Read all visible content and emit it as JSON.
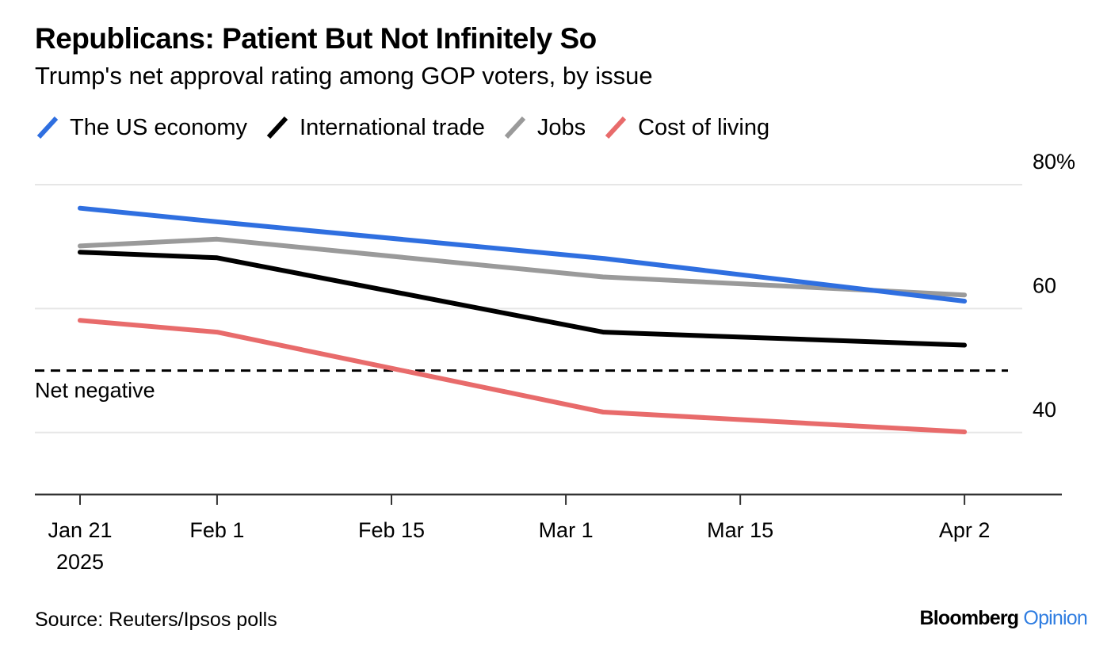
{
  "chart_data": {
    "type": "line",
    "title": "Republicans: Patient But Not Infinitely So",
    "subtitle": "Trump's net approval rating among GOP voters, by issue",
    "xlabel": "",
    "ylabel": "",
    "x": [
      "2025-01-21",
      "2025-02-01",
      "2025-03-04",
      "2025-04-02"
    ],
    "x_day_offsets": [
      0,
      11,
      42,
      71
    ],
    "series": [
      {
        "name": "The US economy",
        "color": "#2f6fe0",
        "values": [
          76.2,
          74.0,
          68.1,
          61.2
        ]
      },
      {
        "name": "International trade",
        "color": "#000000",
        "values": [
          69.1,
          68.2,
          56.2,
          54.1
        ]
      },
      {
        "name": "Jobs",
        "color": "#9a9a9a",
        "values": [
          70.1,
          71.2,
          65.1,
          62.2
        ]
      },
      {
        "name": "Cost of living",
        "color": "#e86b6b",
        "values": [
          58.1,
          56.2,
          43.3,
          40.1
        ]
      }
    ],
    "ylim": [
      30,
      80
    ],
    "yticks": [
      {
        "value": 80,
        "label": "80%"
      },
      {
        "value": 60,
        "label": "60"
      },
      {
        "value": 40,
        "label": "40"
      }
    ],
    "xticks": [
      {
        "day": 0,
        "label": "Jan 21",
        "sublabel": "2025"
      },
      {
        "day": 11,
        "label": "Feb 1",
        "sublabel": ""
      },
      {
        "day": 25,
        "label": "Feb 15",
        "sublabel": ""
      },
      {
        "day": 39,
        "label": "Mar 1",
        "sublabel": ""
      },
      {
        "day": 53,
        "label": "Mar 15",
        "sublabel": ""
      },
      {
        "day": 71,
        "label": "Apr 2",
        "sublabel": ""
      }
    ],
    "reference_line": {
      "value": 50,
      "label": "Net negative",
      "style": "dashed"
    },
    "grid": true,
    "legend_position": "top-left"
  },
  "footer": {
    "source": "Source: Reuters/Ipsos polls",
    "brand_main": "Bloomberg",
    "brand_accent": "Opinion"
  }
}
